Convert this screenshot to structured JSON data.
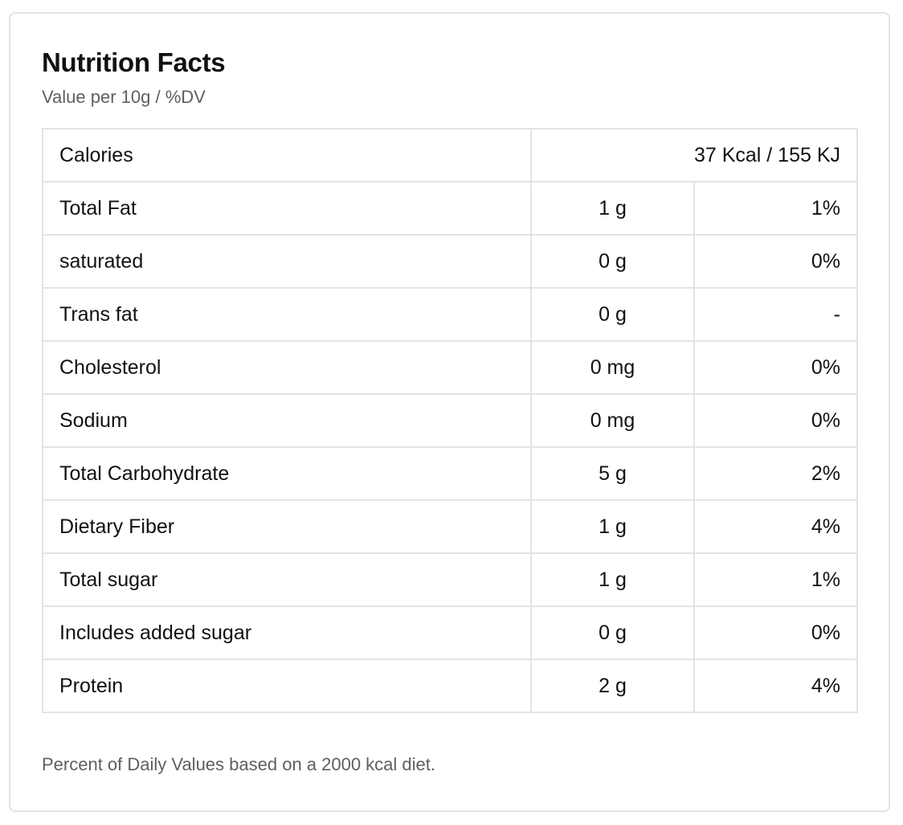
{
  "title": "Nutrition Facts",
  "subtitle": "Value per 10g / %DV",
  "calories": {
    "label": "Calories",
    "value": "37 Kcal / 155 KJ"
  },
  "rows": [
    {
      "name": "Total Fat",
      "amount": "1 g",
      "dv": "1%"
    },
    {
      "name": "saturated",
      "amount": "0 g",
      "dv": "0%"
    },
    {
      "name": "Trans fat",
      "amount": "0 g",
      "dv": "-"
    },
    {
      "name": "Cholesterol",
      "amount": "0 mg",
      "dv": "0%"
    },
    {
      "name": "Sodium",
      "amount": "0 mg",
      "dv": "0%"
    },
    {
      "name": "Total Carbohydrate",
      "amount": "5 g",
      "dv": "2%"
    },
    {
      "name": "Dietary Fiber",
      "amount": "1 g",
      "dv": "4%"
    },
    {
      "name": "Total sugar",
      "amount": "1 g",
      "dv": "1%"
    },
    {
      "name": "Includes added sugar",
      "amount": "0 g",
      "dv": "0%"
    },
    {
      "name": "Protein",
      "amount": "2 g",
      "dv": "4%"
    }
  ],
  "footnote": "Percent of Daily Values based on a 2000 kcal diet."
}
